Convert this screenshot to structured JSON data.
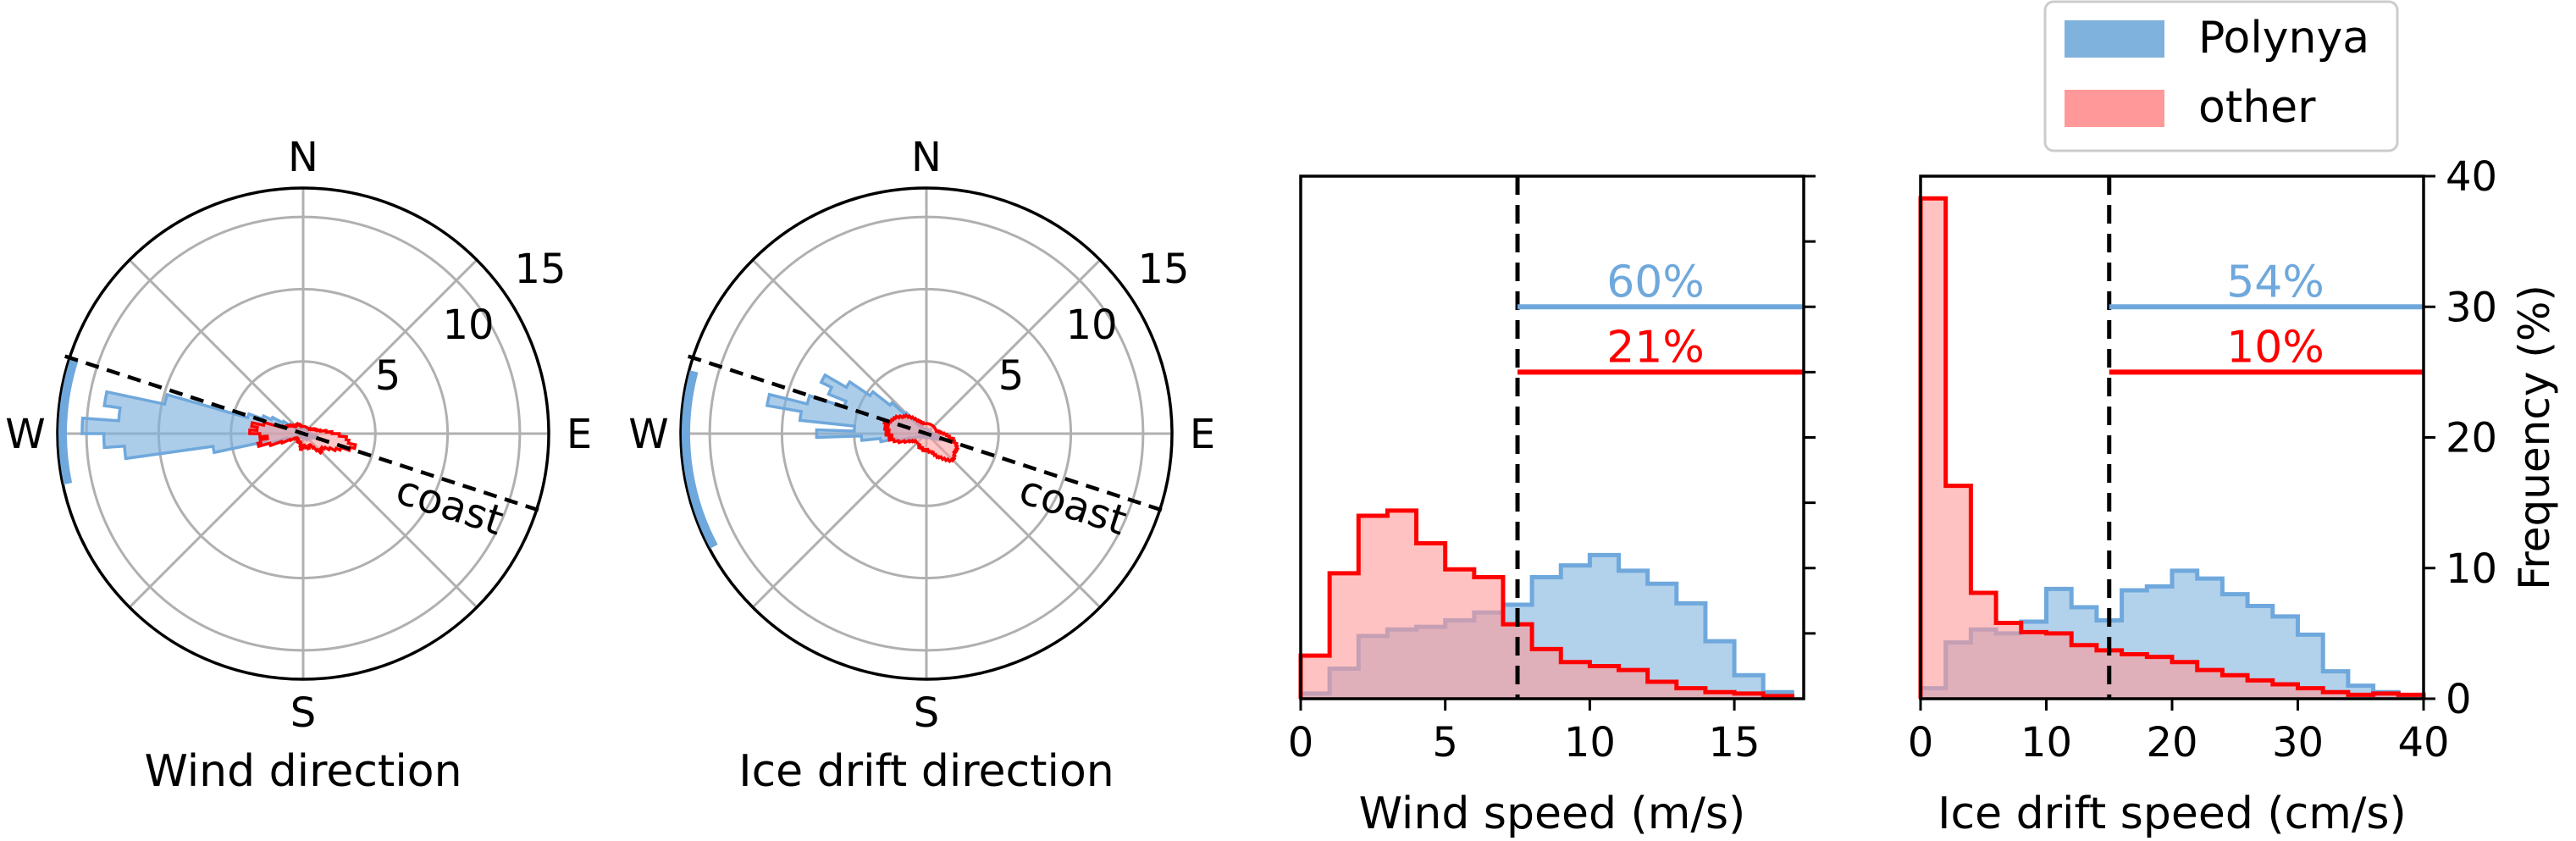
{
  "figure": {
    "legend": {
      "entries": [
        {
          "label": "Polynya",
          "color": "#7fb2dd"
        },
        {
          "label": "other",
          "color": "#ff9999"
        }
      ]
    }
  },
  "chart_data": [
    {
      "type": "polar-histogram",
      "xlabel": "Wind direction",
      "cardinal_labels": [
        "N",
        "E",
        "S",
        "W"
      ],
      "radial_ticks": [
        "5",
        "10",
        "15"
      ],
      "rlim": [
        0,
        17
      ],
      "coast_label": "coast",
      "coast_angle_deg": -18,
      "arc_deg": [
        162,
        192
      ],
      "series": [
        {
          "name": "Polynya",
          "color": "#7fb2dd",
          "angles_deg": [
            162,
            166,
            170,
            174,
            178,
            182,
            186,
            190,
            194,
            198,
            202,
            206,
            210,
            214,
            218,
            222,
            226,
            230,
            234,
            238,
            242,
            246,
            250,
            254,
            258,
            262,
            266,
            270,
            274,
            278,
            282,
            286,
            290,
            294,
            298,
            302,
            306,
            310,
            314,
            318,
            322,
            326,
            330,
            334,
            338,
            342,
            346,
            350,
            354,
            358,
            2,
            6,
            10,
            14,
            18,
            22,
            26,
            30,
            34,
            38,
            42,
            46,
            50,
            54,
            58,
            62,
            66,
            70,
            74,
            78,
            82,
            86,
            90,
            94,
            98,
            102,
            106,
            110,
            114,
            118,
            122,
            126,
            130,
            134,
            138,
            142,
            146,
            150,
            154,
            158
          ],
          "values": [
            4.0,
            9.8,
            13.9,
            12.8,
            15.3,
            13.8,
            12.4,
            6.3,
            2.6,
            1.2,
            0.7,
            0.5,
            0.4,
            0.3,
            0.3,
            0.3,
            0.3,
            0.3,
            0.3,
            0.3,
            0.3,
            0.3,
            0.3,
            0.3,
            0.3,
            0.3,
            0.3,
            0.3,
            0.3,
            0.3,
            0.3,
            0.3,
            0.3,
            0.3,
            0.4,
            0.5,
            0.5,
            0.4,
            0.4,
            0.4,
            0.4,
            0.4,
            0.5,
            0.6,
            0.7,
            0.9,
            1.0,
            0.9,
            0.7,
            0.5,
            0.4,
            0.3,
            0.3,
            0.3,
            0.3,
            0.3,
            0.3,
            0.3,
            0.3,
            0.3,
            0.3,
            0.3,
            0.3,
            0.3,
            0.3,
            0.3,
            0.3,
            0.3,
            0.3,
            0.3,
            0.3,
            0.3,
            0.3,
            0.3,
            0.3,
            0.3,
            0.3,
            0.3,
            0.3,
            0.3,
            0.3,
            0.3,
            0.3,
            0.4,
            0.5,
            0.7,
            1.1,
            1.6,
            2.4,
            3.0
          ]
        },
        {
          "name": "other",
          "color": "#ff0000",
          "angles_deg": [
            162,
            166,
            170,
            174,
            178,
            182,
            186,
            190,
            194,
            198,
            202,
            206,
            210,
            214,
            218,
            222,
            226,
            230,
            234,
            238,
            242,
            246,
            250,
            254,
            258,
            262,
            266,
            270,
            274,
            278,
            282,
            286,
            290,
            294,
            298,
            302,
            306,
            310,
            314,
            318,
            322,
            326,
            330,
            334,
            338,
            342,
            346,
            350,
            354,
            358,
            2,
            6,
            10,
            14,
            18,
            22,
            26,
            30,
            34,
            38,
            42,
            46,
            50,
            54,
            58,
            62,
            66,
            70,
            74,
            78,
            82,
            86,
            90,
            94,
            98,
            102,
            106,
            110,
            114,
            118,
            122,
            126,
            130,
            134,
            138,
            142,
            146,
            150,
            154,
            158
          ],
          "values": [
            1.5,
            2.8,
            3.6,
            3.2,
            3.7,
            3.0,
            2.5,
            3.0,
            3.2,
            2.4,
            1.6,
            1.0,
            0.7,
            0.6,
            0.5,
            0.5,
            0.5,
            0.6,
            0.6,
            0.7,
            0.6,
            0.6,
            0.6,
            0.7,
            0.9,
            1.1,
            1.0,
            0.9,
            0.8,
            0.9,
            1.0,
            1.0,
            1.1,
            1.0,
            0.9,
            1.0,
            1.2,
            1.5,
            1.8,
            1.7,
            1.6,
            1.8,
            2.1,
            2.5,
            2.8,
            3.4,
            3.7,
            3.2,
            3.0,
            2.5,
            2.0,
            1.6,
            1.2,
            1.0,
            0.9,
            0.8,
            0.7,
            0.6,
            0.6,
            0.5,
            0.5,
            0.5,
            0.5,
            0.5,
            0.5,
            0.5,
            0.5,
            0.5,
            0.5,
            0.5,
            0.5,
            0.5,
            0.5,
            0.5,
            0.5,
            0.5,
            0.6,
            0.6,
            0.7,
            0.7,
            0.8,
            0.8,
            0.7,
            0.7,
            0.8,
            0.9,
            1.0,
            1.1,
            1.2,
            1.3
          ]
        }
      ]
    },
    {
      "type": "polar-histogram",
      "xlabel": "Ice drift direction",
      "cardinal_labels": [
        "N",
        "E",
        "S",
        "W"
      ],
      "radial_ticks": [
        "5",
        "10",
        "15"
      ],
      "rlim": [
        0,
        17
      ],
      "coast_label": "coast",
      "coast_angle_deg": -18,
      "arc_deg": [
        165,
        208
      ],
      "series": [
        {
          "name": "Polynya",
          "color": "#7fb2dd",
          "angles_deg": [
            160,
            164,
            168,
            172,
            176,
            180,
            184,
            188,
            192,
            196,
            200,
            204,
            208,
            212,
            216,
            220,
            224,
            228,
            232,
            236,
            240,
            244,
            248,
            252,
            256,
            260,
            264,
            268,
            272,
            276,
            280,
            284,
            288,
            292,
            296,
            300,
            304,
            308,
            312,
            316,
            320,
            324,
            328,
            332,
            336,
            340,
            344,
            348,
            352,
            356,
            0,
            4,
            8,
            12,
            16,
            20,
            24,
            28,
            32,
            36,
            40,
            44,
            48,
            52,
            56,
            60,
            64,
            68,
            72,
            76,
            80,
            84,
            88,
            92,
            96,
            100,
            104,
            108,
            112,
            116,
            120,
            124,
            128,
            132,
            136,
            140,
            144,
            148,
            152,
            156
          ],
          "values": [
            6.0,
            8.5,
            11.2,
            8.8,
            5.0,
            7.6,
            4.5,
            3.2,
            2.1,
            1.2,
            0.8,
            0.5,
            0.4,
            0.3,
            0.3,
            0.3,
            0.3,
            0.3,
            0.3,
            0.3,
            0.3,
            0.3,
            0.3,
            0.3,
            0.3,
            0.3,
            0.3,
            0.3,
            0.3,
            0.3,
            0.3,
            0.3,
            0.3,
            0.3,
            0.3,
            0.3,
            0.3,
            0.3,
            0.4,
            0.4,
            0.4,
            0.5,
            0.6,
            0.8,
            1.0,
            1.1,
            1.0,
            0.8,
            0.6,
            0.5,
            0.4,
            0.4,
            0.3,
            0.3,
            0.3,
            0.3,
            0.3,
            0.3,
            0.3,
            0.3,
            0.3,
            0.3,
            0.3,
            0.3,
            0.3,
            0.3,
            0.3,
            0.3,
            0.3,
            0.3,
            0.3,
            0.3,
            0.3,
            0.3,
            0.3,
            0.3,
            0.3,
            0.3,
            0.3,
            0.3,
            0.4,
            0.5,
            0.8,
            1.3,
            2.0,
            3.2,
            4.7,
            6.4,
            8.1,
            7.3
          ]
        },
        {
          "name": "other",
          "color": "#ff0000",
          "angles_deg": [
            160,
            164,
            168,
            172,
            176,
            180,
            184,
            188,
            192,
            196,
            200,
            204,
            208,
            212,
            216,
            220,
            224,
            228,
            232,
            236,
            240,
            244,
            248,
            252,
            256,
            260,
            264,
            268,
            272,
            276,
            280,
            284,
            288,
            292,
            296,
            300,
            304,
            308,
            312,
            316,
            320,
            324,
            328,
            332,
            336,
            340,
            344,
            348,
            352,
            356,
            0,
            4,
            8,
            12,
            16,
            20,
            24,
            28,
            32,
            36,
            40,
            44,
            48,
            52,
            56,
            60,
            64,
            68,
            72,
            76,
            80,
            84,
            88,
            92,
            96,
            100,
            104,
            108,
            112,
            116,
            120,
            124,
            128,
            132,
            136,
            140,
            144,
            148,
            152,
            156
          ],
          "values": [
            2.6,
            3.0,
            2.7,
            2.9,
            2.6,
            2.8,
            2.4,
            2.6,
            2.3,
            2.0,
            1.6,
            1.3,
            1.1,
            1.0,
            0.9,
            0.9,
            0.9,
            0.9,
            0.9,
            0.9,
            1.0,
            1.1,
            1.0,
            1.0,
            1.1,
            1.2,
            1.2,
            1.1,
            1.1,
            1.2,
            1.3,
            1.3,
            1.4,
            1.6,
            1.8,
            1.9,
            2.1,
            2.3,
            2.5,
            2.6,
            2.5,
            2.4,
            2.3,
            2.4,
            2.3,
            2.2,
            2.0,
            1.9,
            1.6,
            1.4,
            1.2,
            1.0,
            0.9,
            0.8,
            0.7,
            0.7,
            0.7,
            0.7,
            0.7,
            0.7,
            0.7,
            0.7,
            0.7,
            0.7,
            0.7,
            0.7,
            0.7,
            0.7,
            0.7,
            0.7,
            0.7,
            0.7,
            0.7,
            0.7,
            0.7,
            0.7,
            0.7,
            0.8,
            0.8,
            0.9,
            1.0,
            1.1,
            1.3,
            1.5,
            1.7,
            1.9,
            2.0,
            2.2,
            2.4,
            2.5
          ]
        }
      ]
    },
    {
      "type": "histogram",
      "xlabel": "Wind speed (m/s)",
      "xlim": [
        0,
        17.4
      ],
      "ylim": [
        0,
        40
      ],
      "xticks": [
        0,
        5,
        10,
        15
      ],
      "yticks_minor": [
        5,
        10,
        15,
        20,
        25,
        30,
        35,
        40
      ],
      "bin_edges": [
        0,
        1,
        2,
        3,
        4,
        5,
        6,
        7,
        8,
        9,
        10,
        11,
        12,
        13,
        14,
        15,
        16,
        17
      ],
      "series": [
        {
          "name": "Polynya",
          "color": "#7fb2dd",
          "values": [
            0.4,
            2.3,
            4.8,
            5.3,
            5.5,
            6.0,
            6.6,
            7.2,
            9.3,
            10.2,
            11.0,
            9.8,
            8.8,
            7.3,
            4.4,
            1.8,
            0.5
          ]
        },
        {
          "name": "other",
          "color": "#ff0000",
          "values": [
            3.3,
            9.6,
            14.0,
            14.4,
            11.9,
            9.9,
            9.3,
            5.7,
            3.8,
            2.8,
            2.5,
            2.2,
            1.3,
            0.8,
            0.5,
            0.4,
            0.2
          ]
        }
      ],
      "threshold": 7.5,
      "threshold_lines": [
        {
          "name": "Polynya",
          "color": "#6fa8dc",
          "y": 30,
          "label": "60%"
        },
        {
          "name": "other",
          "color": "#ff0000",
          "y": 25,
          "label": "21%"
        }
      ]
    },
    {
      "type": "histogram",
      "xlabel": "Ice drift speed (cm/s)",
      "ylabel": "Frequency (%)",
      "xlim": [
        0,
        40
      ],
      "ylim": [
        0,
        40
      ],
      "xticks": [
        0,
        10,
        20,
        30,
        40
      ],
      "yticks": [
        0,
        10,
        20,
        30,
        40
      ],
      "bin_edges": [
        0,
        2,
        4,
        6,
        8,
        10,
        12,
        14,
        16,
        18,
        20,
        22,
        24,
        26,
        28,
        30,
        32,
        34,
        36,
        38,
        40
      ],
      "series": [
        {
          "name": "Polynya",
          "color": "#7fb2dd",
          "values": [
            0.8,
            4.3,
            5.3,
            5.0,
            5.9,
            8.4,
            7.0,
            6.0,
            8.3,
            8.6,
            9.8,
            9.2,
            8.0,
            7.1,
            6.3,
            4.9,
            2.1,
            1.0,
            0.5,
            0.2
          ]
        },
        {
          "name": "other",
          "color": "#ff0000",
          "values": [
            38.3,
            16.3,
            8.1,
            5.8,
            5.1,
            5.0,
            4.1,
            3.7,
            3.4,
            3.2,
            2.8,
            2.2,
            1.8,
            1.4,
            1.1,
            0.8,
            0.5,
            0.3,
            0.4,
            0.3
          ]
        }
      ],
      "threshold": 15,
      "threshold_lines": [
        {
          "name": "Polynya",
          "color": "#6fa8dc",
          "y": 30,
          "label": "54%"
        },
        {
          "name": "other",
          "color": "#ff0000",
          "y": 25,
          "label": "10%"
        }
      ]
    }
  ]
}
